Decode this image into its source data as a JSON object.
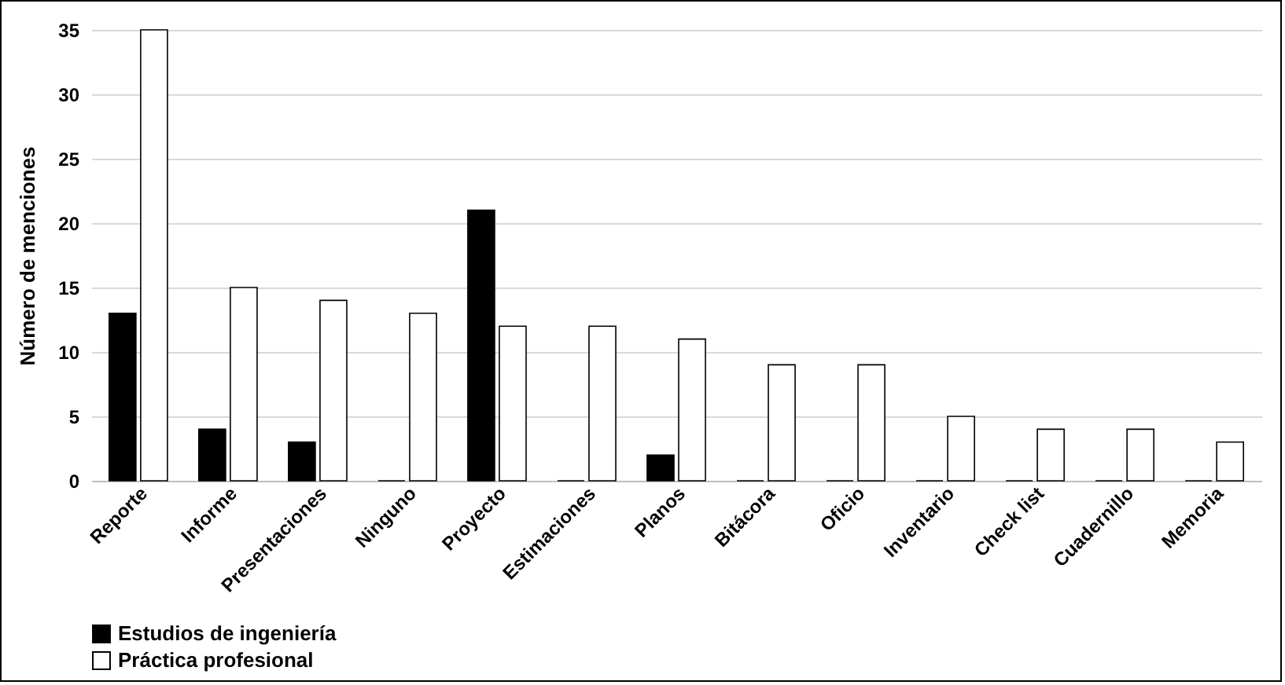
{
  "chart_data": {
    "type": "bar",
    "ylabel": "Número de menciones",
    "categories": [
      "Reporte",
      "Informe",
      "Presentaciones",
      "Ninguno",
      "Proyecto",
      "Estimaciones",
      "Planos",
      "Bitácora",
      "Oficio",
      "Inventario",
      "Check list",
      "Cuadernillo",
      "Memoria"
    ],
    "series": [
      {
        "name": "Estudios de ingeniería",
        "color": "#000000",
        "values": [
          13,
          4,
          3,
          0,
          21,
          0,
          2,
          0,
          0,
          0,
          0,
          0,
          0
        ]
      },
      {
        "name": "Práctica profesional",
        "color": "#ffffff",
        "values": [
          35,
          15,
          14,
          13,
          12,
          12,
          11,
          9,
          9,
          5,
          4,
          4,
          3
        ]
      }
    ],
    "ylim": [
      0,
      35
    ],
    "yticks": [
      0,
      5,
      10,
      15,
      20,
      25,
      30,
      35
    ],
    "grid": "y",
    "legend": "bottom"
  }
}
